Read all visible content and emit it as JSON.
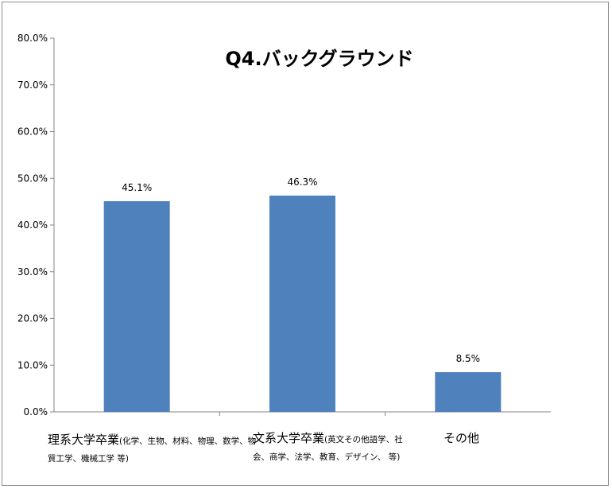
{
  "chart_data": {
    "type": "bar",
    "title": "Q4.バックグラウンド",
    "categories": [
      {
        "main": "理系大学卒業",
        "sub": "(化学、生物、材料、物理、数学、物質工学、機械工学 等)"
      },
      {
        "main": "文系大学卒業",
        "sub": "(英文その他語学、社会、商学、法学、教育、デザイン、 等)"
      },
      {
        "main": "その他",
        "sub": ""
      }
    ],
    "values": [
      45.1,
      46.3,
      8.5
    ],
    "data_labels": [
      "45.1%",
      "46.3%",
      "8.5%"
    ],
    "yticks": [
      "0.0%",
      "10.0%",
      "20.0%",
      "30.0%",
      "40.0%",
      "50.0%",
      "60.0%",
      "70.0%",
      "80.0%"
    ],
    "ylim": [
      0,
      80
    ],
    "grid": false,
    "legend": "none",
    "bar_color": "#4f81bd",
    "axis_color": "#868686"
  }
}
